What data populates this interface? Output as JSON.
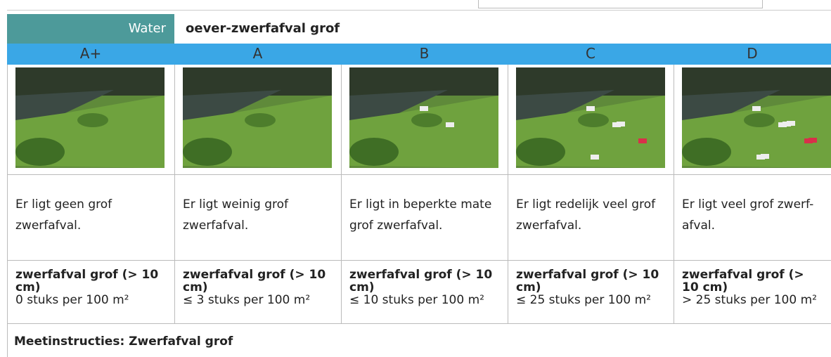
{
  "header": {
    "category": "Water",
    "title": "oever-zwerfafval grof"
  },
  "columns": [
    {
      "grade": "A+",
      "description": "Er ligt geen grof zwerfafval.",
      "criterion_title": "zwerfafval grof (> 10 cm)",
      "criterion": "0 stuks per 100 m²"
    },
    {
      "grade": "A",
      "description": "Er ligt weinig grof zwerfafval.",
      "criterion_title": "zwerfafval grof (> 10 cm)",
      "criterion": "≤ 3 stuks per 100 m²"
    },
    {
      "grade": "B",
      "description": "Er ligt in beperkte mate grof zwerfafval.",
      "criterion_title": "zwerfafval grof (> 10 cm)",
      "criterion": "≤ 10 stuks per 100 m²"
    },
    {
      "grade": "C",
      "description": "Er ligt redelijk veel grof zwerfafval.",
      "criterion_title": "zwerfafval grof (> 10 cm)",
      "criterion": "≤ 25 stuks per 100 m²"
    },
    {
      "grade": "D",
      "description": "Er ligt veel grof zwerf-afval.",
      "criterion_title": "zwerfafval grof (> 10 cm)",
      "criterion": "> 25 stuks per 100 m²"
    }
  ],
  "footer": "Meetinstructies: Zwerfafval grof"
}
